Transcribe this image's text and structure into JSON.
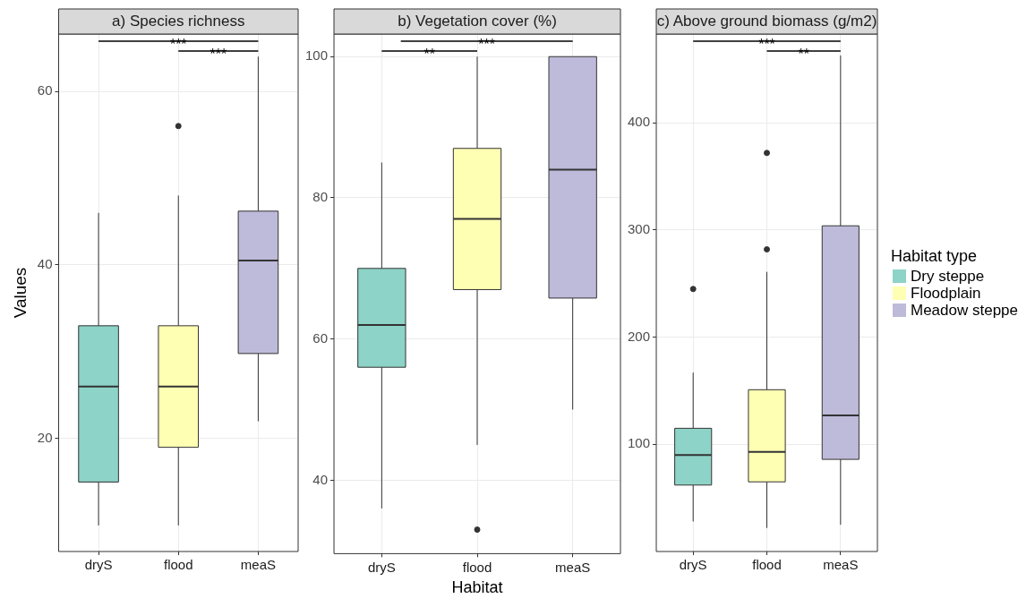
{
  "chart_data": [
    {
      "type": "box",
      "title": "a) Species richness",
      "ylabel": "Values",
      "categories": [
        "dryS",
        "flood",
        "meaS"
      ],
      "ylim": [
        7,
        66.6
      ],
      "yticks": [
        20,
        40,
        60
      ],
      "grid": true,
      "legend": false,
      "annotations": [
        "***",
        "***"
      ],
      "series": [
        {
          "color": "#8dd3c7",
          "boxes": [
            {
              "low": 10,
              "q1": 15,
              "median": 26,
              "q3": 33,
              "high": 46
            },
            null,
            null
          ]
        },
        {
          "color": "#ffffb3",
          "boxes": [
            null,
            {
              "low": 10,
              "q1": 19,
              "median": 26,
              "q3": 33,
              "high": 48,
              "outliers": [
                56
              ]
            },
            null
          ]
        },
        {
          "color": "#bebada",
          "boxes": [
            null,
            null,
            {
              "low": 22,
              "q1": 29.8,
              "median": 40.5,
              "q3": 46.2,
              "high": 64
            }
          ]
        }
      ]
    },
    {
      "type": "box",
      "title": "b) Vegetation cover (%)",
      "xlabel": "Habitat",
      "categories": [
        "dryS",
        "flood",
        "meaS"
      ],
      "ylim": [
        29.6,
        103.2
      ],
      "yticks": [
        40,
        60,
        80,
        100
      ],
      "grid": true,
      "legend": false,
      "annotations": [
        "**",
        "***"
      ],
      "series": [
        {
          "color": "#8dd3c7",
          "boxes": [
            {
              "low": 36,
              "q1": 56,
              "median": 62,
              "q3": 70,
              "high": 85
            },
            null,
            null
          ]
        },
        {
          "color": "#ffffb3",
          "boxes": [
            null,
            {
              "low": 45,
              "q1": 67,
              "median": 77,
              "q3": 87,
              "high": 100,
              "outliers": [
                33
              ]
            },
            null
          ]
        },
        {
          "color": "#bebada",
          "boxes": [
            null,
            null,
            {
              "low": 50,
              "q1": 65.8,
              "median": 84,
              "q3": 100,
              "high": 100
            }
          ]
        }
      ]
    },
    {
      "type": "box",
      "title": "c) Above ground biomass (g/m2)",
      "categories": [
        "dryS",
        "flood",
        "meaS"
      ],
      "ylim": [
        0,
        483
      ],
      "yticks": [
        100,
        200,
        300,
        400
      ],
      "grid": true,
      "legend": "right",
      "legend_title": "Habitat type",
      "annotations": [
        "***",
        "**"
      ],
      "series": [
        {
          "name": "Dry steppe",
          "color": "#8dd3c7",
          "boxes": [
            {
              "low": 28,
              "q1": 62,
              "median": 90,
              "q3": 115,
              "high": 167,
              "outliers": [
                245
              ]
            },
            null,
            null
          ]
        },
        {
          "name": "Floodplain",
          "color": "#ffffb3",
          "boxes": [
            null,
            {
              "low": 22,
              "q1": 65,
              "median": 93,
              "q3": 151,
              "high": 261,
              "outliers": [
                282,
                372
              ]
            },
            null
          ]
        },
        {
          "name": "Meadow steppe",
          "color": "#bebada",
          "boxes": [
            null,
            null,
            {
              "low": 25,
              "q1": 86,
              "median": 127,
              "q3": 304,
              "high": 463
            }
          ]
        }
      ]
    }
  ]
}
